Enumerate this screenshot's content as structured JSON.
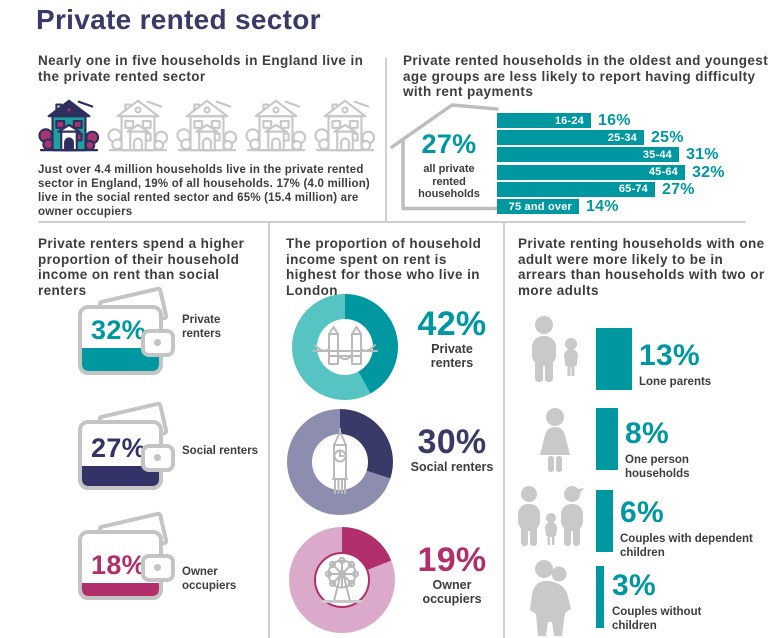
{
  "page": {
    "title": "Private rented sector"
  },
  "colors": {
    "teal": "#0098a0",
    "teal_light": "#56c4c3",
    "navy": "#3a3a68",
    "navy_light": "#8d8daf",
    "magenta": "#b12f6b",
    "magenta_light": "#dba9c9",
    "icon_gray": "#c8c8c8",
    "text": "#3d3d3d"
  },
  "sections": {
    "prs_share": {
      "heading": "Nearly one in five households in England live in the private rented sector",
      "houses_total": 5,
      "houses_highlighted": 1,
      "body": "Just over 4.4 million households live in the private rented sector in England, 19% of all households. 17% (4.0 million) live in the social rented sector and 65% (15.4 million) are owner occupiers"
    },
    "rent_difficulty": {
      "heading": "Private rented households in the oldest and youngest age groups are less likely to report having difficulty with rent payments",
      "callout_value": "27%",
      "callout_label_lines": "all private rented households"
    },
    "income_on_rent": {
      "heading": "Private renters spend a higher proportion of their household income on rent than social renters",
      "wallets": [
        {
          "value": 32,
          "display": "32%",
          "label": "Private renters",
          "color": "#0098a0"
        },
        {
          "value": 27,
          "display": "27%",
          "label": "Social renters",
          "color": "#333367"
        },
        {
          "value": 18,
          "display": "18%",
          "label": "Owner occupiers",
          "color": "#b12f6b"
        }
      ]
    },
    "london": {
      "heading": "The proportion of household income spent on rent is highest for those who live in London",
      "donuts": [
        {
          "value": 42,
          "display": "42%",
          "label": "Private renters",
          "icon": "tower-bridge-icon",
          "color": "#0098a0",
          "rest_color": "#56c4c3",
          "ring": false
        },
        {
          "value": 30,
          "display": "30%",
          "label": "Social renters",
          "icon": "big-ben-icon",
          "color": "#3a3a68",
          "rest_color": "#8d8daf",
          "ring": false
        },
        {
          "value": 19,
          "display": "19%",
          "label": "Owner occupiers",
          "icon": "london-eye-icon",
          "color": "#b12f6b",
          "rest_color": "#dba9c9",
          "ring": true
        }
      ]
    },
    "arrears": {
      "heading": "Private renting households with one adult were more likely to be in arrears than households with two or more adults",
      "rows": [
        {
          "value": 13,
          "display": "13%",
          "label": "Lone parents",
          "icon": "lone-parent-icon"
        },
        {
          "value": 8,
          "display": "8%",
          "label": "One person households",
          "icon": "one-person-icon"
        },
        {
          "value": 6,
          "display": "6%",
          "label": "Couples with dependent children",
          "icon": "couple-with-child-icon"
        },
        {
          "value": 3,
          "display": "3%",
          "label": "Couples without children",
          "icon": "couple-icon"
        }
      ]
    }
  },
  "chart_data": [
    {
      "type": "bar",
      "orientation": "horizontal",
      "title": "Private rented households reporting difficulty with rent payments, by age group",
      "categories": [
        "16-24",
        "25-34",
        "35-44",
        "45-64",
        "65-74",
        "75 and over"
      ],
      "values": [
        16,
        25,
        31,
        32,
        27,
        14
      ],
      "value_labels": [
        "16%",
        "25%",
        "31%",
        "32%",
        "27%",
        "14%"
      ],
      "unit": "%",
      "annotation": "27% all private rented households",
      "bar_color": "#0098a0",
      "xlim": [
        0,
        35
      ],
      "grid": false,
      "legend": "none"
    },
    {
      "type": "bar",
      "title": "Proportion of household income spent on rent/housing",
      "categories": [
        "Private renters",
        "Social renters",
        "Owner occupiers"
      ],
      "values": [
        32,
        27,
        18
      ],
      "value_labels": [
        "32%",
        "27%",
        "18%"
      ],
      "unit": "%",
      "colors": [
        "#0098a0",
        "#333367",
        "#b12f6b"
      ]
    },
    {
      "type": "pie",
      "title": "Proportion of household income spent on rent for those who live in London",
      "categories": [
        "Private renters",
        "Social renters",
        "Owner occupiers"
      ],
      "values": [
        42,
        30,
        19
      ],
      "value_labels": [
        "42%",
        "30%",
        "19%"
      ],
      "unit": "%",
      "note": "three separate donut charts, each value vs remainder",
      "colors": [
        "#0098a0",
        "#3a3a68",
        "#b12f6b"
      ]
    },
    {
      "type": "bar",
      "title": "Private renting households in arrears, by household type",
      "categories": [
        "Lone parents",
        "One person households",
        "Couples with dependent children",
        "Couples without children"
      ],
      "values": [
        13,
        8,
        6,
        3
      ],
      "value_labels": [
        "13%",
        "8%",
        "6%",
        "3%"
      ],
      "unit": "%",
      "bar_color": "#0098a0"
    }
  ]
}
